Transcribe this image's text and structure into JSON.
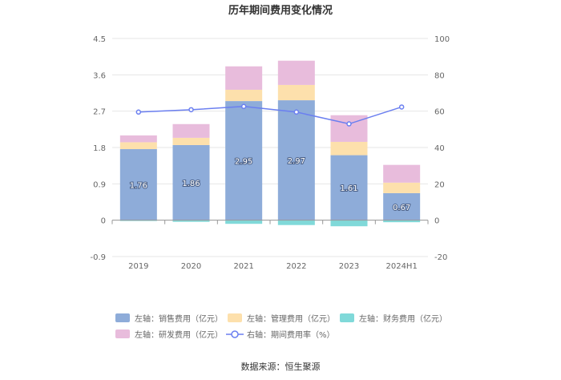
{
  "chart_data": {
    "type": "bar",
    "title": "历年期间费用变化情况",
    "categories": [
      "2019",
      "2020",
      "2021",
      "2022",
      "2023",
      "2024H1"
    ],
    "left_axis": {
      "ylim": [
        -0.9,
        4.5
      ],
      "ticks": [
        "-0.9",
        "0",
        "0.9",
        "1.8",
        "2.7",
        "3.6",
        "4.5"
      ]
    },
    "right_axis": {
      "ylim": [
        -20,
        100
      ],
      "ticks": [
        "-20",
        "0",
        "20",
        "40",
        "60",
        "80",
        "100"
      ]
    },
    "series": [
      {
        "name": "左轴：销售费用（亿元）",
        "axis": "left",
        "kind": "bar",
        "color": "#8eacd9",
        "values": [
          1.76,
          1.86,
          2.95,
          2.97,
          1.61,
          0.67
        ],
        "labels": [
          "1.76",
          "1.86",
          "2.95",
          "2.97",
          "1.61",
          "0.67"
        ]
      },
      {
        "name": "左轴：管理费用（亿元）",
        "axis": "left",
        "kind": "bar",
        "color": "#fde0ac",
        "values": [
          0.17,
          0.18,
          0.28,
          0.38,
          0.33,
          0.26
        ]
      },
      {
        "name": "左轴：财务费用（亿元）",
        "axis": "left",
        "kind": "bar",
        "color": "#80d9d9",
        "values": [
          -0.02,
          -0.04,
          -0.09,
          -0.12,
          -0.15,
          -0.05
        ]
      },
      {
        "name": "左轴：研发费用（亿元）",
        "axis": "left",
        "kind": "bar",
        "color": "#e8bcdc",
        "values": [
          0.17,
          0.34,
          0.58,
          0.6,
          0.66,
          0.44
        ]
      },
      {
        "name": "右轴：期间费用率（%）",
        "axis": "right",
        "kind": "line",
        "color": "#6b7ff0",
        "values": [
          59.5,
          60.8,
          62.6,
          59.5,
          53.0,
          62.3
        ]
      }
    ],
    "source": "数据来源：恒生聚源"
  }
}
